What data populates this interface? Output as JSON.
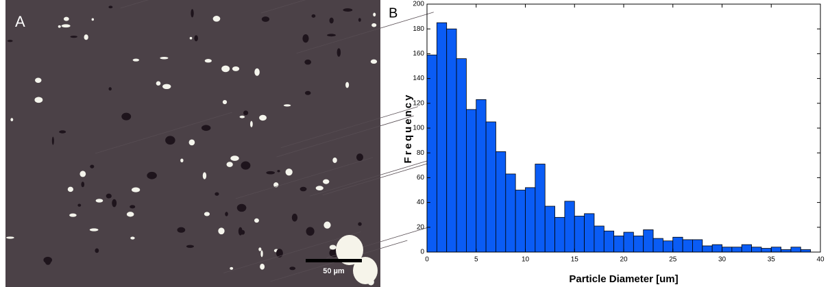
{
  "image_panel": {
    "label": "A",
    "scale_bar_label": "50 µm"
  },
  "chart_data": {
    "type": "histogram",
    "panel_label": "B",
    "x_label": "Particle Diameter [um]",
    "y_label": "Frequency",
    "bins": [
      0,
      1,
      2,
      3,
      4,
      5,
      6,
      7,
      8,
      9,
      10,
      11,
      12,
      13,
      14,
      15,
      16,
      17,
      18,
      19,
      20,
      21,
      22,
      23,
      24,
      25,
      26,
      27,
      28,
      29,
      30,
      31,
      32,
      33,
      34,
      35,
      36,
      37,
      38,
      39
    ],
    "values": [
      159,
      185,
      180,
      156,
      115,
      123,
      105,
      81,
      63,
      50,
      52,
      71,
      37,
      28,
      41,
      29,
      31,
      21,
      17,
      13,
      16,
      13,
      18,
      11,
      9,
      12,
      10,
      10,
      5,
      6,
      4,
      4,
      6,
      4,
      3,
      4,
      2,
      4,
      2
    ],
    "color": "#0a5cf5",
    "xlim": [
      0,
      40
    ],
    "xticks": [
      0,
      5,
      10,
      15,
      20,
      25,
      30,
      35,
      40
    ],
    "ylim": [
      0,
      200
    ],
    "yticks": [
      0,
      20,
      40,
      60,
      80,
      100,
      120,
      140,
      160,
      180,
      200
    ],
    "grid": false
  }
}
